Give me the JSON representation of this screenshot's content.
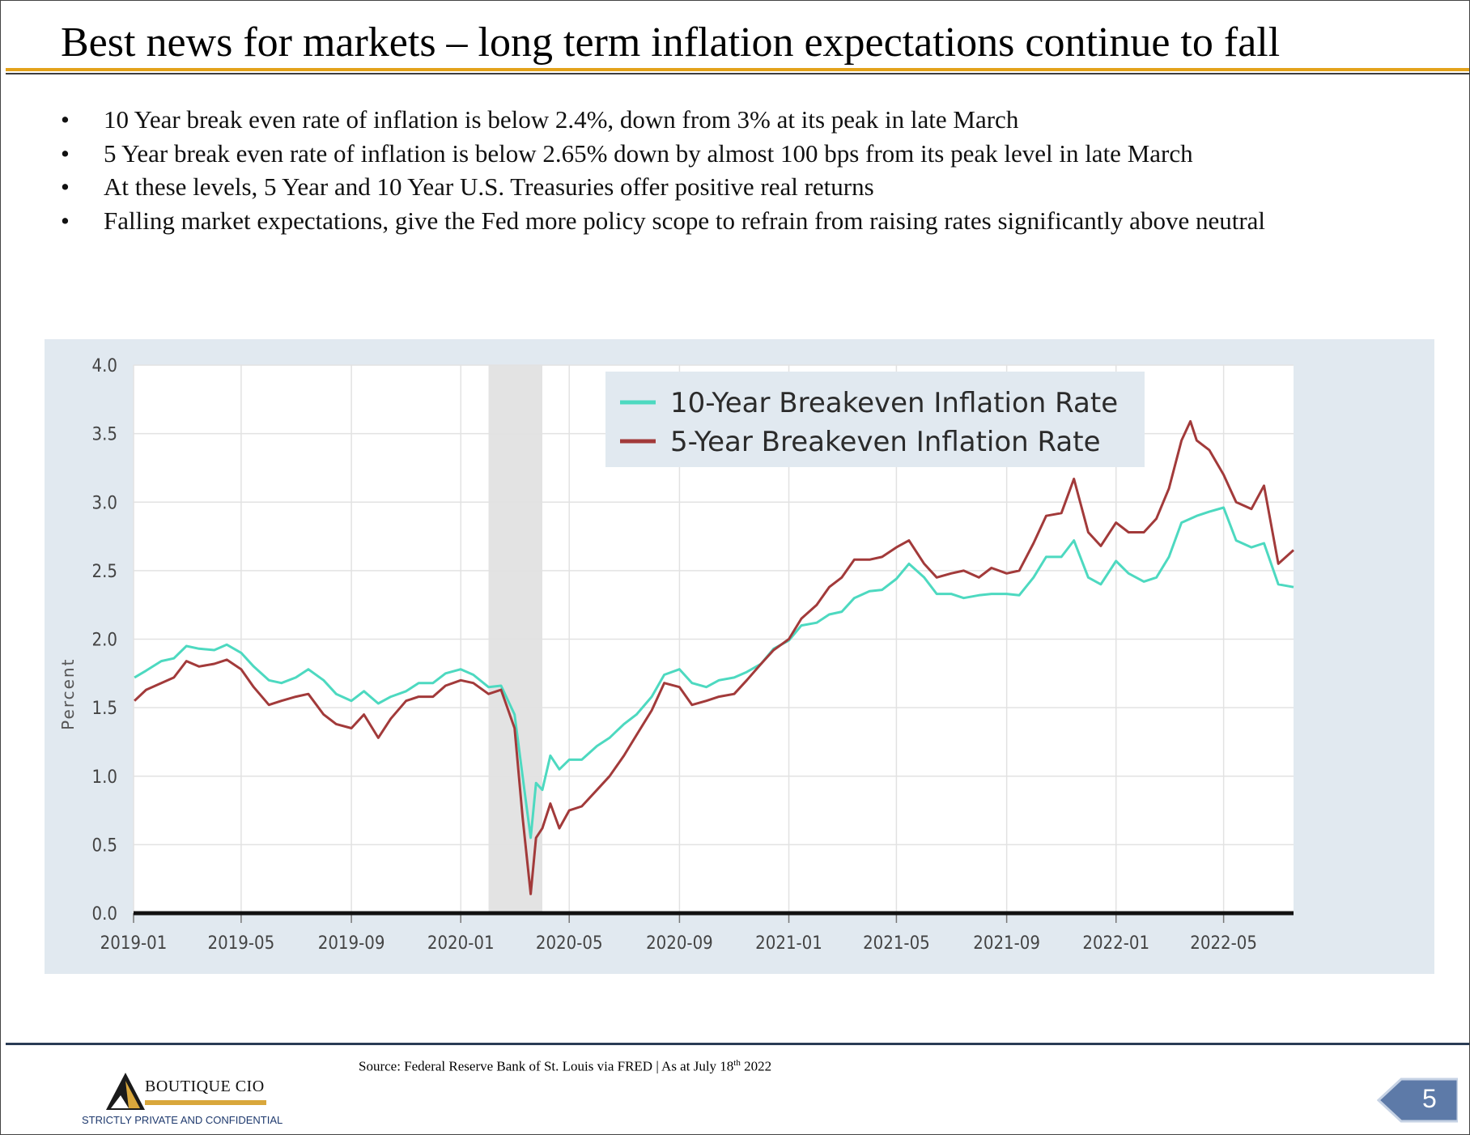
{
  "header": {
    "title": "Best news for markets – long term inflation expectations continue to fall"
  },
  "bullets": [
    "10 Year break even rate of inflation is below 2.4%, down from 3% at its peak in late March",
    "5 Year break even rate of inflation is below 2.65% down by almost 100 bps from its peak level in late March",
    "At these levels, 5 Year and 10 Year U.S. Treasuries offer positive real returns",
    "Falling market expectations, give the Fed more policy scope to refrain from raising rates significantly above neutral"
  ],
  "bullet_symbol": "•",
  "footer": {
    "source_prefix": "Source: Federal Reserve Bank of St. Louis via FRED | As at July 18",
    "source_sup": "th",
    "source_suffix": " 2022",
    "logo_name": "BOUTIQUE CIO",
    "confidential": "STRICTLY PRIVATE AND CONFIDENTIAL",
    "page_number": "5"
  },
  "colors": {
    "ten_year": "#4dd9c0",
    "five_year": "#a23a3a",
    "recession": "#e3e3e3",
    "accent": "#e3a21a",
    "page_tab": "#5d7aa8"
  },
  "chart_data": {
    "type": "line",
    "title": "",
    "xlabel": "",
    "ylabel": "Percent",
    "ylim": [
      0,
      4.0
    ],
    "yticks": [
      "0.0",
      "0.5",
      "1.0",
      "1.5",
      "2.0",
      "2.5",
      "3.0",
      "3.5",
      "4.0"
    ],
    "xlim": [
      "2019-01",
      "2022-07-18"
    ],
    "xticks": [
      "2019-01",
      "2019-05",
      "2019-09",
      "2020-01",
      "2020-05",
      "2020-09",
      "2021-01",
      "2021-05",
      "2021-09",
      "2022-01",
      "2022-05"
    ],
    "recession_shading": [
      "2020-02",
      "2020-04"
    ],
    "grid": true,
    "legend_position": "top-center",
    "series": [
      {
        "name": "10-Year Breakeven Inflation Rate",
        "points": [
          [
            "2019-01-02",
            1.72
          ],
          [
            "2019-01-15",
            1.77
          ],
          [
            "2019-02-01",
            1.84
          ],
          [
            "2019-02-15",
            1.86
          ],
          [
            "2019-03-01",
            1.95
          ],
          [
            "2019-03-15",
            1.93
          ],
          [
            "2019-04-01",
            1.92
          ],
          [
            "2019-04-15",
            1.96
          ],
          [
            "2019-05-01",
            1.9
          ],
          [
            "2019-05-15",
            1.8
          ],
          [
            "2019-06-01",
            1.7
          ],
          [
            "2019-06-15",
            1.68
          ],
          [
            "2019-07-01",
            1.72
          ],
          [
            "2019-07-15",
            1.78
          ],
          [
            "2019-08-01",
            1.7
          ],
          [
            "2019-08-15",
            1.6
          ],
          [
            "2019-09-01",
            1.55
          ],
          [
            "2019-09-15",
            1.62
          ],
          [
            "2019-10-01",
            1.53
          ],
          [
            "2019-10-15",
            1.58
          ],
          [
            "2019-11-01",
            1.62
          ],
          [
            "2019-11-15",
            1.68
          ],
          [
            "2019-12-01",
            1.68
          ],
          [
            "2019-12-15",
            1.75
          ],
          [
            "2020-01-01",
            1.78
          ],
          [
            "2020-01-15",
            1.74
          ],
          [
            "2020-02-01",
            1.65
          ],
          [
            "2020-02-15",
            1.66
          ],
          [
            "2020-03-01",
            1.45
          ],
          [
            "2020-03-10",
            1.0
          ],
          [
            "2020-03-19",
            0.55
          ],
          [
            "2020-03-25",
            0.95
          ],
          [
            "2020-04-01",
            0.9
          ],
          [
            "2020-04-10",
            1.15
          ],
          [
            "2020-04-20",
            1.05
          ],
          [
            "2020-05-01",
            1.12
          ],
          [
            "2020-05-15",
            1.12
          ],
          [
            "2020-06-01",
            1.22
          ],
          [
            "2020-06-15",
            1.28
          ],
          [
            "2020-07-01",
            1.38
          ],
          [
            "2020-07-15",
            1.45
          ],
          [
            "2020-08-01",
            1.58
          ],
          [
            "2020-08-15",
            1.74
          ],
          [
            "2020-09-01",
            1.78
          ],
          [
            "2020-09-15",
            1.68
          ],
          [
            "2020-10-01",
            1.65
          ],
          [
            "2020-10-15",
            1.7
          ],
          [
            "2020-11-01",
            1.72
          ],
          [
            "2020-11-15",
            1.76
          ],
          [
            "2020-12-01",
            1.82
          ],
          [
            "2020-12-15",
            1.93
          ],
          [
            "2021-01-01",
            1.99
          ],
          [
            "2021-01-15",
            2.1
          ],
          [
            "2021-02-01",
            2.12
          ],
          [
            "2021-02-15",
            2.18
          ],
          [
            "2021-03-01",
            2.2
          ],
          [
            "2021-03-15",
            2.3
          ],
          [
            "2021-04-01",
            2.35
          ],
          [
            "2021-04-15",
            2.36
          ],
          [
            "2021-05-01",
            2.44
          ],
          [
            "2021-05-15",
            2.55
          ],
          [
            "2021-06-01",
            2.45
          ],
          [
            "2021-06-15",
            2.33
          ],
          [
            "2021-07-01",
            2.33
          ],
          [
            "2021-07-15",
            2.3
          ],
          [
            "2021-08-01",
            2.32
          ],
          [
            "2021-08-15",
            2.33
          ],
          [
            "2021-09-01",
            2.33
          ],
          [
            "2021-09-15",
            2.32
          ],
          [
            "2021-10-01",
            2.45
          ],
          [
            "2021-10-15",
            2.6
          ],
          [
            "2021-11-01",
            2.6
          ],
          [
            "2021-11-15",
            2.72
          ],
          [
            "2021-12-01",
            2.45
          ],
          [
            "2021-12-15",
            2.4
          ],
          [
            "2022-01-01",
            2.57
          ],
          [
            "2022-01-15",
            2.48
          ],
          [
            "2022-02-01",
            2.42
          ],
          [
            "2022-02-15",
            2.45
          ],
          [
            "2022-03-01",
            2.6
          ],
          [
            "2022-03-15",
            2.85
          ],
          [
            "2022-04-01",
            2.9
          ],
          [
            "2022-04-15",
            2.93
          ],
          [
            "2022-05-01",
            2.96
          ],
          [
            "2022-05-15",
            2.72
          ],
          [
            "2022-06-01",
            2.67
          ],
          [
            "2022-06-15",
            2.7
          ],
          [
            "2022-07-01",
            2.4
          ],
          [
            "2022-07-18",
            2.38
          ]
        ]
      },
      {
        "name": "5-Year Breakeven Inflation Rate",
        "points": [
          [
            "2019-01-02",
            1.55
          ],
          [
            "2019-01-15",
            1.63
          ],
          [
            "2019-02-01",
            1.68
          ],
          [
            "2019-02-15",
            1.72
          ],
          [
            "2019-03-01",
            1.84
          ],
          [
            "2019-03-15",
            1.8
          ],
          [
            "2019-04-01",
            1.82
          ],
          [
            "2019-04-15",
            1.85
          ],
          [
            "2019-05-01",
            1.78
          ],
          [
            "2019-05-15",
            1.65
          ],
          [
            "2019-06-01",
            1.52
          ],
          [
            "2019-06-15",
            1.55
          ],
          [
            "2019-07-01",
            1.58
          ],
          [
            "2019-07-15",
            1.6
          ],
          [
            "2019-08-01",
            1.45
          ],
          [
            "2019-08-15",
            1.38
          ],
          [
            "2019-09-01",
            1.35
          ],
          [
            "2019-09-15",
            1.45
          ],
          [
            "2019-10-01",
            1.28
          ],
          [
            "2019-10-15",
            1.42
          ],
          [
            "2019-11-01",
            1.55
          ],
          [
            "2019-11-15",
            1.58
          ],
          [
            "2019-12-01",
            1.58
          ],
          [
            "2019-12-15",
            1.66
          ],
          [
            "2020-01-01",
            1.7
          ],
          [
            "2020-01-15",
            1.68
          ],
          [
            "2020-02-01",
            1.6
          ],
          [
            "2020-02-15",
            1.63
          ],
          [
            "2020-03-01",
            1.35
          ],
          [
            "2020-03-10",
            0.7
          ],
          [
            "2020-03-19",
            0.14
          ],
          [
            "2020-03-25",
            0.55
          ],
          [
            "2020-04-01",
            0.62
          ],
          [
            "2020-04-10",
            0.8
          ],
          [
            "2020-04-20",
            0.62
          ],
          [
            "2020-05-01",
            0.75
          ],
          [
            "2020-05-15",
            0.78
          ],
          [
            "2020-06-01",
            0.9
          ],
          [
            "2020-06-15",
            1.0
          ],
          [
            "2020-07-01",
            1.15
          ],
          [
            "2020-07-15",
            1.3
          ],
          [
            "2020-08-01",
            1.48
          ],
          [
            "2020-08-15",
            1.68
          ],
          [
            "2020-09-01",
            1.65
          ],
          [
            "2020-09-15",
            1.52
          ],
          [
            "2020-10-01",
            1.55
          ],
          [
            "2020-10-15",
            1.58
          ],
          [
            "2020-11-01",
            1.6
          ],
          [
            "2020-11-15",
            1.7
          ],
          [
            "2020-12-01",
            1.82
          ],
          [
            "2020-12-15",
            1.92
          ],
          [
            "2021-01-01",
            2.0
          ],
          [
            "2021-01-15",
            2.15
          ],
          [
            "2021-02-01",
            2.25
          ],
          [
            "2021-02-15",
            2.38
          ],
          [
            "2021-03-01",
            2.45
          ],
          [
            "2021-03-15",
            2.58
          ],
          [
            "2021-04-01",
            2.58
          ],
          [
            "2021-04-15",
            2.6
          ],
          [
            "2021-05-01",
            2.67
          ],
          [
            "2021-05-15",
            2.72
          ],
          [
            "2021-06-01",
            2.55
          ],
          [
            "2021-06-15",
            2.45
          ],
          [
            "2021-07-01",
            2.48
          ],
          [
            "2021-07-15",
            2.5
          ],
          [
            "2021-08-01",
            2.45
          ],
          [
            "2021-08-15",
            2.52
          ],
          [
            "2021-09-01",
            2.48
          ],
          [
            "2021-09-15",
            2.5
          ],
          [
            "2021-10-01",
            2.7
          ],
          [
            "2021-10-15",
            2.9
          ],
          [
            "2021-11-01",
            2.92
          ],
          [
            "2021-11-15",
            3.17
          ],
          [
            "2021-12-01",
            2.78
          ],
          [
            "2021-12-15",
            2.68
          ],
          [
            "2022-01-01",
            2.85
          ],
          [
            "2022-01-15",
            2.78
          ],
          [
            "2022-02-01",
            2.78
          ],
          [
            "2022-02-15",
            2.88
          ],
          [
            "2022-03-01",
            3.1
          ],
          [
            "2022-03-15",
            3.45
          ],
          [
            "2022-03-25",
            3.59
          ],
          [
            "2022-04-01",
            3.45
          ],
          [
            "2022-04-15",
            3.38
          ],
          [
            "2022-05-01",
            3.2
          ],
          [
            "2022-05-15",
            3.0
          ],
          [
            "2022-06-01",
            2.95
          ],
          [
            "2022-06-15",
            3.12
          ],
          [
            "2022-07-01",
            2.55
          ],
          [
            "2022-07-18",
            2.65
          ]
        ]
      }
    ]
  }
}
